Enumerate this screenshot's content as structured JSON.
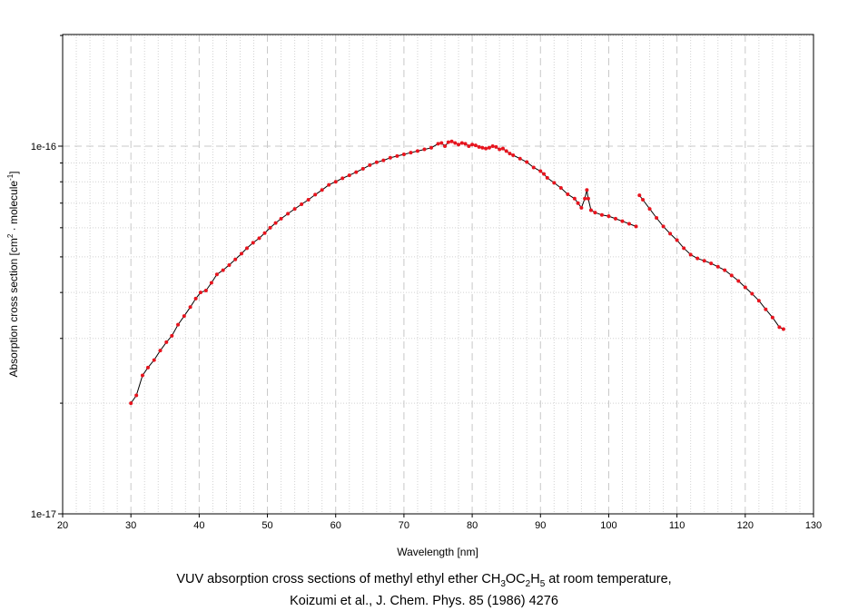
{
  "chart_data": {
    "type": "line",
    "title": "",
    "xlabel": "Wavelength [nm]",
    "ylabel": "Absorption cross section [cm² · molecule⁻¹]",
    "xlim": [
      20,
      130
    ],
    "ylim": [
      1e-17,
      2e-16
    ],
    "yscale": "log",
    "grid": true,
    "x_ticks": [
      "20",
      "30",
      "40",
      "50",
      "60",
      "70",
      "80",
      "90",
      "100",
      "110",
      "120",
      "130"
    ],
    "y_ticks": [
      "1e-17",
      "1e-16"
    ],
    "line_color": "#000000",
    "marker_color": "#e8141e",
    "series": [
      {
        "segments": [
          {
            "x": [
              30.0,
              30.8,
              31.7,
              32.5,
              33.4,
              34.3,
              35.2,
              36.0,
              36.9,
              37.8,
              38.7,
              39.5,
              40.2,
              41.0,
              41.8,
              42.6,
              43.5,
              44.4,
              45.3,
              46.2,
              47.0,
              47.9,
              48.8,
              49.6,
              50.4,
              51.2,
              52.0,
              53.0,
              54.0,
              55.0,
              56.0,
              57.0,
              58.0,
              59.0,
              60.0,
              61.0,
              62.0,
              63.0,
              64.0,
              65.0,
              66.0,
              67.0,
              68.0,
              69.0,
              70.0,
              71.0,
              72.0,
              73.0,
              74.0,
              75.0,
              75.5,
              76.0,
              76.5,
              77.0,
              77.5,
              78.0,
              78.5,
              79.0,
              79.5,
              80.0,
              80.5,
              81.0,
              81.5,
              82.0,
              82.5,
              83.0,
              83.5,
              84.0,
              84.5,
              85.0,
              85.5,
              86.0,
              87.0,
              88.0,
              89.0,
              90.0,
              90.5,
              91.0,
              92.0,
              93.0,
              94.0,
              95.0,
              95.5,
              96.0,
              96.5,
              96.8,
              97.0,
              97.4,
              98.0,
              99.0,
              100.0,
              101.0,
              102.0,
              103.0,
              104.0
            ],
            "y": [
              2e-17,
              2.1e-17,
              2.38e-17,
              2.5e-17,
              2.62e-17,
              2.78e-17,
              2.93e-17,
              3.05e-17,
              3.27e-17,
              3.45e-17,
              3.65e-17,
              3.85e-17,
              4e-17,
              4.05e-17,
              4.25e-17,
              4.48e-17,
              4.6e-17,
              4.75e-17,
              4.92e-17,
              5.1e-17,
              5.28e-17,
              5.46e-17,
              5.62e-17,
              5.8e-17,
              6e-17,
              6.18e-17,
              6.35e-17,
              6.55e-17,
              6.75e-17,
              6.95e-17,
              7.15e-17,
              7.38e-17,
              7.6e-17,
              7.85e-17,
              8e-17,
              8.18e-17,
              8.33e-17,
              8.5e-17,
              8.68e-17,
              8.88e-17,
              9.04e-17,
              9.15e-17,
              9.3e-17,
              9.4e-17,
              9.5e-17,
              9.6e-17,
              9.7e-17,
              9.8e-17,
              9.9e-17,
              1.015e-16,
              1.02e-16,
              1e-16,
              1.025e-16,
              1.03e-16,
              1.02e-16,
              1.01e-16,
              1.02e-16,
              1.015e-16,
              1e-16,
              1.01e-16,
              1.005e-16,
              9.95e-17,
              9.9e-17,
              9.85e-17,
              9.9e-17,
              1e-16,
              9.95e-17,
              9.8e-17,
              9.85e-17,
              9.7e-17,
              9.55e-17,
              9.45e-17,
              9.25e-17,
              9.05e-17,
              8.75e-17,
              8.55e-17,
              8.4e-17,
              8.2e-17,
              7.95e-17,
              7.7e-17,
              7.4e-17,
              7.2e-17,
              7e-17,
              6.8e-17,
              7.2e-17,
              7.6e-17,
              7.2e-17,
              6.7e-17,
              6.6e-17,
              6.5e-17,
              6.45e-17,
              6.35e-17,
              6.25e-17,
              6.15e-17,
              6.05e-17
            ]
          },
          {
            "x": [
              104.5,
              105.0,
              106.0,
              107.0,
              108.0,
              109.0,
              110.0,
              111.0,
              112.0,
              113.0,
              114.0,
              115.0,
              116.0,
              117.0,
              118.0,
              119.0,
              120.0,
              121.0,
              122.0,
              123.0,
              124.0,
              125.0,
              125.6
            ],
            "y": [
              7.35e-17,
              7.15e-17,
              6.75e-17,
              6.38e-17,
              6.05e-17,
              5.78e-17,
              5.55e-17,
              5.28e-17,
              5.07e-17,
              4.95e-17,
              4.88e-17,
              4.8e-17,
              4.7e-17,
              4.6e-17,
              4.45e-17,
              4.3e-17,
              4.13e-17,
              3.97e-17,
              3.8e-17,
              3.6e-17,
              3.42e-17,
              3.22e-17,
              3.18e-17
            ]
          }
        ]
      }
    ]
  },
  "caption": {
    "line1_prefix": "VUV absorption cross sections of methyl ethyl ether CH",
    "sub1": "3",
    "mid1": "OC",
    "sub2": "2",
    "mid2": "H",
    "sub3": "5",
    "line1_suffix": " at room temperature,",
    "line2": "Koizumi et al., J. Chem. Phys. 85 (1986) 4276"
  },
  "ylabel_parts": {
    "pre": "Absorption cross section [cm",
    "sup1": "2",
    "mid": " · molecule",
    "sup2": "-1",
    "post": "]"
  }
}
